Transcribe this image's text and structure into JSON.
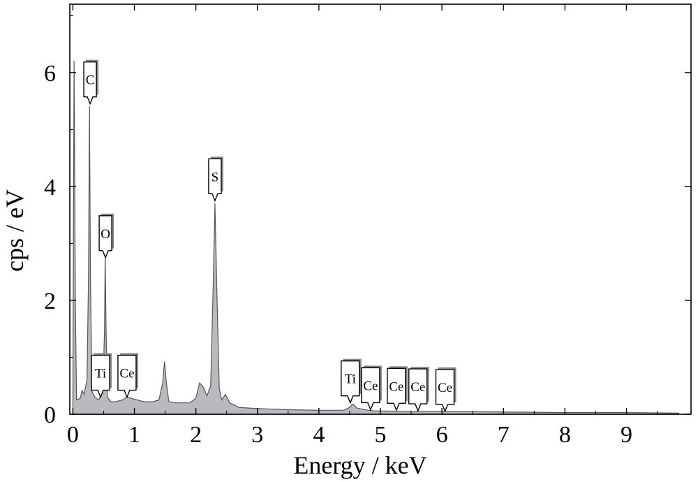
{
  "chart_data": {
    "type": "area",
    "title": "",
    "xlabel": "Energy / keV",
    "ylabel": "cps / eV",
    "xlim": [
      -0.05,
      10.05
    ],
    "ylim": [
      0,
      7.2
    ],
    "x_ticks": [
      0,
      1,
      2,
      3,
      4,
      5,
      6,
      7,
      8,
      9
    ],
    "x_tick_labels": [
      "0",
      "1",
      "2",
      "3",
      "4",
      "5",
      "6",
      "7",
      "8",
      "9"
    ],
    "y_ticks": [
      0,
      2,
      4,
      6
    ],
    "y_tick_labels": [
      "0",
      "2",
      "4",
      "6"
    ],
    "grid": false,
    "colors": {
      "fill": "#b9b9c0",
      "line": "#555555",
      "marker_shadow": "#8a8a8a"
    },
    "series": [
      {
        "points": [
          [
            0.0,
            0.05
          ],
          [
            0.01,
            3.7
          ],
          [
            0.02,
            6.2
          ],
          [
            0.04,
            2.0
          ],
          [
            0.06,
            0.25
          ],
          [
            0.12,
            0.28
          ],
          [
            0.15,
            0.42
          ],
          [
            0.18,
            0.35
          ],
          [
            0.23,
            0.6
          ],
          [
            0.255,
            2.5
          ],
          [
            0.27,
            5.4
          ],
          [
            0.285,
            2.5
          ],
          [
            0.31,
            0.4
          ],
          [
            0.36,
            0.3
          ],
          [
            0.42,
            0.25
          ],
          [
            0.45,
            0.32
          ],
          [
            0.49,
            0.5
          ],
          [
            0.515,
            1.5
          ],
          [
            0.525,
            2.8
          ],
          [
            0.54,
            1.5
          ],
          [
            0.56,
            0.3
          ],
          [
            0.62,
            0.22
          ],
          [
            0.7,
            0.22
          ],
          [
            0.8,
            0.25
          ],
          [
            0.88,
            0.3
          ],
          [
            0.95,
            0.28
          ],
          [
            1.05,
            0.25
          ],
          [
            1.15,
            0.22
          ],
          [
            1.3,
            0.22
          ],
          [
            1.4,
            0.25
          ],
          [
            1.46,
            0.55
          ],
          [
            1.49,
            0.92
          ],
          [
            1.52,
            0.55
          ],
          [
            1.56,
            0.22
          ],
          [
            1.7,
            0.2
          ],
          [
            1.9,
            0.2
          ],
          [
            2.0,
            0.28
          ],
          [
            2.06,
            0.55
          ],
          [
            2.12,
            0.48
          ],
          [
            2.18,
            0.32
          ],
          [
            2.24,
            0.5
          ],
          [
            2.28,
            2.2
          ],
          [
            2.31,
            3.7
          ],
          [
            2.34,
            2.2
          ],
          [
            2.38,
            0.45
          ],
          [
            2.42,
            0.25
          ],
          [
            2.48,
            0.35
          ],
          [
            2.55,
            0.2
          ],
          [
            2.7,
            0.12
          ],
          [
            3.0,
            0.1
          ],
          [
            3.5,
            0.08
          ],
          [
            4.0,
            0.07
          ],
          [
            4.4,
            0.07
          ],
          [
            4.5,
            0.12
          ],
          [
            4.55,
            0.18
          ],
          [
            4.62,
            0.11
          ],
          [
            4.8,
            0.07
          ],
          [
            4.9,
            0.06
          ],
          [
            5.5,
            0.05
          ],
          [
            6.0,
            0.05
          ],
          [
            7.0,
            0.04
          ],
          [
            8.0,
            0.03
          ],
          [
            9.0,
            0.03
          ],
          [
            9.85,
            0.02
          ]
        ]
      }
    ],
    "peak_markers": [
      {
        "label": "C",
        "x": 0.28,
        "y": 5.45
      },
      {
        "label": "O",
        "x": 0.53,
        "y": 2.75
      },
      {
        "label": "S",
        "x": 2.31,
        "y": 3.75
      },
      {
        "label": "Ti",
        "x": 0.45,
        "y": 0.3
      },
      {
        "label": "Ce",
        "x": 0.88,
        "y": 0.3
      },
      {
        "label": "Ti",
        "x": 4.51,
        "y": 0.2
      },
      {
        "label": "Ce",
        "x": 4.84,
        "y": 0.08
      },
      {
        "label": "Ce",
        "x": 5.26,
        "y": 0.07
      },
      {
        "label": "Ce",
        "x": 5.61,
        "y": 0.06
      },
      {
        "label": "Ce",
        "x": 6.05,
        "y": 0.05
      }
    ]
  }
}
